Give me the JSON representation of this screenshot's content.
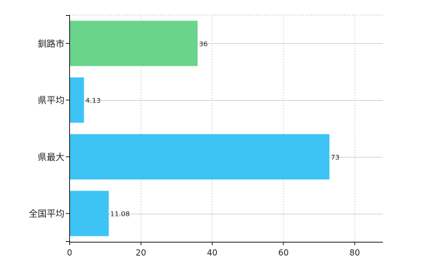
{
  "chart_data": {
    "type": "bar",
    "orientation": "horizontal",
    "categories": [
      "釧路市",
      "県平均",
      "県最大",
      "全国平均"
    ],
    "values": [
      36,
      4.13,
      73,
      11.08
    ],
    "value_labels": [
      "36",
      "4.13",
      "73",
      "11.08"
    ],
    "bar_colors": [
      "#6ad48a",
      "#3dc4f4",
      "#3dc4f4",
      "#3dc4f4"
    ],
    "title": "",
    "xlabel": "",
    "ylabel": "",
    "xlim": [
      0,
      88
    ],
    "xticks": [
      0,
      20,
      40,
      60,
      80
    ],
    "grid": true,
    "legend": "none"
  }
}
